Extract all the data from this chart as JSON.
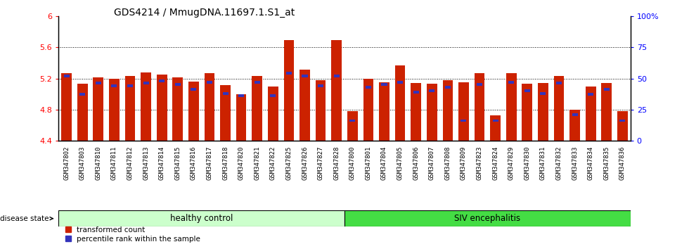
{
  "title": "GDS4214 / MmugDNA.11697.1.S1_at",
  "samples": [
    "GSM347802",
    "GSM347803",
    "GSM347810",
    "GSM347811",
    "GSM347812",
    "GSM347813",
    "GSM347814",
    "GSM347815",
    "GSM347816",
    "GSM347817",
    "GSM347818",
    "GSM347820",
    "GSM347821",
    "GSM347822",
    "GSM347825",
    "GSM347826",
    "GSM347827",
    "GSM347828",
    "GSM347800",
    "GSM347801",
    "GSM347804",
    "GSM347805",
    "GSM347806",
    "GSM347807",
    "GSM347808",
    "GSM347809",
    "GSM347823",
    "GSM347824",
    "GSM347829",
    "GSM347830",
    "GSM347831",
    "GSM347832",
    "GSM347833",
    "GSM347834",
    "GSM347835",
    "GSM347836"
  ],
  "red_values": [
    5.27,
    5.13,
    5.21,
    5.2,
    5.23,
    5.28,
    5.25,
    5.21,
    5.16,
    5.27,
    5.11,
    5.0,
    5.23,
    5.1,
    5.69,
    5.31,
    5.18,
    5.69,
    4.78,
    5.2,
    5.15,
    5.37,
    5.14,
    5.13,
    5.18,
    5.15,
    5.27,
    4.73,
    5.27,
    5.13,
    5.14,
    5.23,
    4.8,
    5.1,
    5.14,
    4.78
  ],
  "blue_values": [
    51,
    36,
    45,
    43,
    43,
    45,
    47,
    44,
    40,
    46,
    37,
    35,
    46,
    35,
    53,
    51,
    43,
    51,
    15,
    42,
    44,
    46,
    38,
    39,
    42,
    15,
    44,
    15,
    46,
    39,
    37,
    45,
    20,
    36,
    40,
    15
  ],
  "healthy_count": 18,
  "ylim_left": [
    4.4,
    6.0
  ],
  "ylim_right": [
    0,
    100
  ],
  "yticks_left": [
    4.4,
    4.8,
    5.2,
    5.6,
    6.0
  ],
  "yticks_right": [
    0,
    25,
    50,
    75,
    100
  ],
  "ytick_labels_left": [
    "4.4",
    "4.8",
    "5.2",
    "5.6",
    "6"
  ],
  "ytick_labels_right": [
    "0",
    "25",
    "50",
    "75",
    "100%"
  ],
  "red_color": "#CC2200",
  "blue_color": "#3333BB",
  "healthy_color": "#CCFFCC",
  "siv_color": "#44DD44",
  "bar_width": 0.65,
  "base": 4.4,
  "legend_labels": [
    "transformed count",
    "percentile rank within the sample"
  ],
  "group_labels": [
    "healthy control",
    "SIV encephalitis"
  ],
  "disease_state_label": "disease state"
}
